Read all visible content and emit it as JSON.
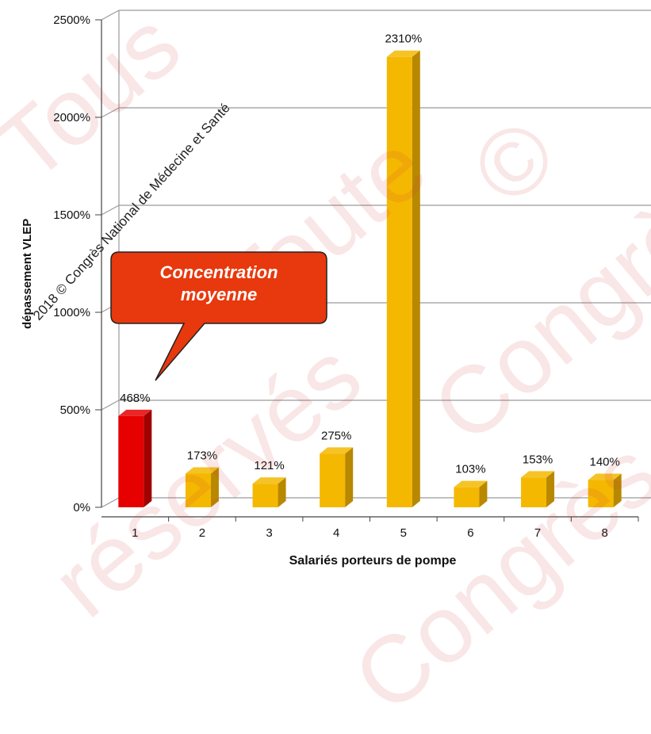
{
  "chart_data": {
    "type": "bar",
    "categories": [
      "1",
      "2",
      "3",
      "4",
      "5",
      "6",
      "7",
      "8"
    ],
    "values": [
      468,
      173,
      121,
      275,
      2310,
      103,
      153,
      140
    ],
    "value_labels": [
      "468%",
      "173%",
      "121%",
      "275%",
      "2310%",
      "103%",
      "153%",
      "140%"
    ],
    "ylim": [
      0,
      2500
    ],
    "yticks": [
      0,
      500,
      1000,
      1500,
      2000,
      2500
    ],
    "ytick_labels": [
      "0%",
      "500%",
      "1000%",
      "1500%",
      "2000%",
      "2500%"
    ],
    "xlabel": "Salariés porteurs de pompe",
    "ylabel": "dépassement VLEP",
    "grid": true,
    "highlight_index": 0
  },
  "colors": {
    "bar": "#f5b800",
    "bar_side": "#b88800",
    "highlight": "#e60000",
    "highlight_side": "#a00000",
    "callout": "#e8380d"
  },
  "callout": {
    "line1": "Concentration",
    "line2": "moyenne"
  },
  "copyright": "2018 © Congrès National de Médecine et Santé",
  "watermarks": [
    "Tous",
    "Toute",
    "Congrès",
    "réservés",
    "Congrès",
    "©"
  ]
}
